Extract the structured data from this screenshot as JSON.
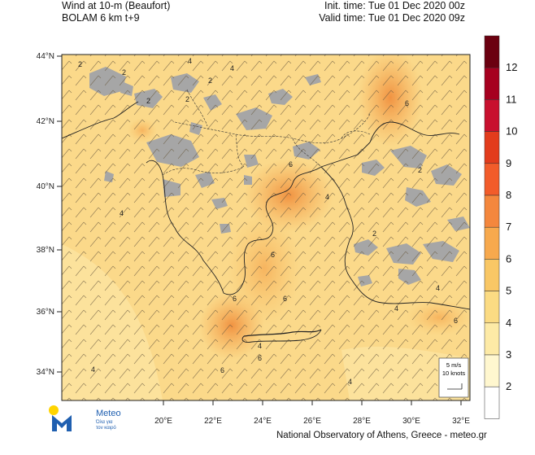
{
  "header": {
    "title_line1": "Wind at 10-m (Beaufort)",
    "title_line2": "BOLAM 6 km t+9",
    "init_time": "Init. time: Tue 01 Dec 2020 00z",
    "valid_time": "Valid time: Tue 01 Dec 2020 09z"
  },
  "axes": {
    "lat_labels": [
      "44°N",
      "42°N",
      "40°N",
      "38°N",
      "36°N",
      "34°N"
    ],
    "lon_labels": [
      "20°E",
      "22°E",
      "24°E",
      "26°E",
      "28°E",
      "30°E",
      "32°E"
    ]
  },
  "colorbar": {
    "labels": [
      "12",
      "11",
      "10",
      "9",
      "8",
      "7",
      "6",
      "5",
      "4",
      "3",
      "2"
    ],
    "colors": [
      "#6b0010",
      "#a6001f",
      "#c8102e",
      "#e23c1c",
      "#f25c2a",
      "#f4873d",
      "#f7a94d",
      "#f9c765",
      "#fbdb83",
      "#fdeaa6",
      "#fff7cf",
      "#ffffff"
    ]
  },
  "map_colors": {
    "sea_base": "#fbd98a",
    "land_grey": "#a6a6a6",
    "stronger_wind": "#f4a84f",
    "strongest_wind": "#ef8a3a"
  },
  "contour_labels": [
    "2",
    "2",
    "2",
    "4",
    "2",
    "2",
    "4",
    "6",
    "6",
    "4",
    "4",
    "6",
    "6",
    "6",
    "4",
    "4",
    "2",
    "2",
    "6",
    "6",
    "4",
    "4",
    "4",
    "6"
  ],
  "scale_box": {
    "line1": "5 m/s",
    "line2": "10 knots"
  },
  "logo": {
    "name": "Meteo",
    "tagline_line1": "Όλα για",
    "tagline_line2": "τον καιρό"
  },
  "footer": {
    "credit": "National Observatory of Athens, Greece - meteo.gr"
  }
}
